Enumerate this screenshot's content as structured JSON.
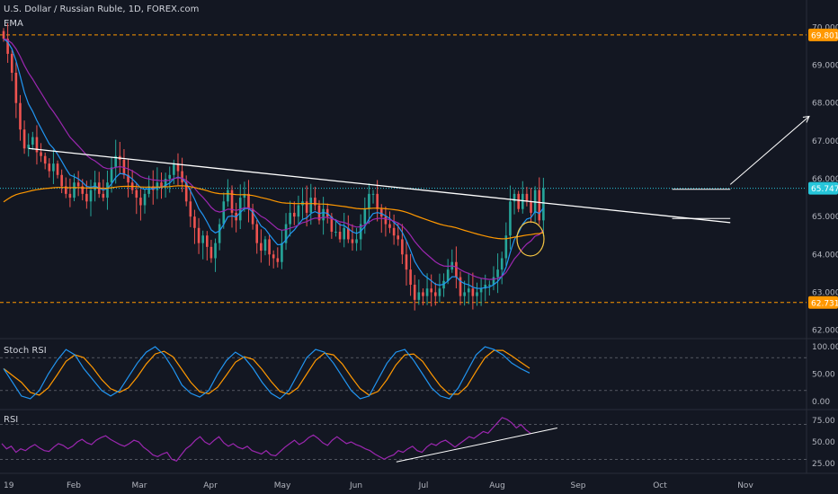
{
  "header": {
    "title": "U.S. Dollar / Russian Ruble, 1D, FOREX.com",
    "indicator": "EMA"
  },
  "panes": {
    "stoch_label": "Stoch RSI",
    "rsi_label": "RSI"
  },
  "colors": {
    "background": "#131722",
    "up": "#26a69a",
    "down": "#ef5350",
    "ema_fast": "#2196f3",
    "ema_mid": "#9c27b0",
    "ema_slow": "#ff9800",
    "stoch_k": "#2196f3",
    "stoch_d": "#ff9800",
    "rsi": "#9c27b0",
    "trendline": "#ffffff",
    "level": "#ff9800",
    "current": "#26c6da",
    "circle": "#f5c542"
  },
  "chart_data": {
    "type": "candlestick",
    "instrument": "U.S. Dollar / Russian Ruble, 1D, FOREX.com",
    "x_ticks": [
      "19",
      "Feb",
      "Mar",
      "Apr",
      "May",
      "Jun",
      "Jul",
      "Aug",
      "Sep",
      "Oct",
      "Nov"
    ],
    "price_ticks": [
      "70.000",
      "69.000",
      "68.000",
      "67.000",
      "66.000",
      "65.000",
      "64.000",
      "63.000",
      "62.000"
    ],
    "ylim": [
      61.8,
      70.2
    ],
    "price_labels": {
      "high_level": "69.801",
      "current": "65.747",
      "low_level": "62.731"
    },
    "levels": {
      "high": 69.801,
      "current": 65.747,
      "low": 62.731
    },
    "closes": [
      69.7,
      69.3,
      68.8,
      68.0,
      67.3,
      66.8,
      66.9,
      67.1,
      66.7,
      66.6,
      66.4,
      66.2,
      66.4,
      66.1,
      65.8,
      65.6,
      65.5,
      65.9,
      65.8,
      65.6,
      65.4,
      65.7,
      65.9,
      65.6,
      65.5,
      65.9,
      66.3,
      66.6,
      66.5,
      66.1,
      65.9,
      65.7,
      65.5,
      65.3,
      65.6,
      65.8,
      65.7,
      65.9,
      65.8,
      66.0,
      66.1,
      66.4,
      66.2,
      65.9,
      65.4,
      65.0,
      64.7,
      64.3,
      64.5,
      64.2,
      63.9,
      64.3,
      64.8,
      65.4,
      65.7,
      65.1,
      64.9,
      65.5,
      65.6,
      65.2,
      64.8,
      64.3,
      64.1,
      64.4,
      64.0,
      63.9,
      63.8,
      64.3,
      64.8,
      65.1,
      65.0,
      65.3,
      65.4,
      65.1,
      65.5,
      65.3,
      64.9,
      65.2,
      65.0,
      64.6,
      64.6,
      64.4,
      64.7,
      64.4,
      64.3,
      64.4,
      64.8,
      65.2,
      65.6,
      65.6,
      65.2,
      65.0,
      64.8,
      64.7,
      64.5,
      64.4,
      64.0,
      63.6,
      63.2,
      62.8,
      63.0,
      62.9,
      63.1,
      63.0,
      62.9,
      63.1,
      63.3,
      63.6,
      63.8,
      63.4,
      62.9,
      63.0,
      63.1,
      62.9,
      63.0,
      63.1,
      63.2,
      63.2,
      63.4,
      63.6,
      63.9,
      64.5,
      65.4,
      65.6,
      65.2,
      65.6,
      65.4,
      65.1,
      65.7,
      64.9,
      65.747
    ],
    "trendlines": [
      {
        "x": [
          6,
          175
        ],
        "y": [
          66.8,
          64.84
        ]
      },
      {
        "x": [
          161,
          175
        ],
        "y": [
          65.72,
          65.72
        ]
      },
      {
        "x": [
          161,
          175
        ],
        "y": [
          64.95,
          64.95
        ]
      },
      {
        "x": [
          175,
          194
        ],
        "y": [
          65.85,
          67.65
        ]
      }
    ],
    "stoch_rsi": {
      "ticks": [
        "100.00",
        "50.00",
        "0.00"
      ],
      "bands": [
        80,
        20
      ],
      "k": [
        60,
        35,
        10,
        5,
        20,
        50,
        75,
        95,
        85,
        60,
        40,
        20,
        10,
        20,
        45,
        70,
        90,
        100,
        85,
        60,
        30,
        15,
        8,
        20,
        50,
        75,
        90,
        80,
        60,
        35,
        15,
        5,
        20,
        50,
        80,
        95,
        90,
        70,
        45,
        20,
        5,
        10,
        40,
        70,
        90,
        95,
        75,
        50,
        25,
        10,
        5,
        25,
        55,
        85,
        100,
        95,
        85,
        70,
        60,
        52
      ]
    },
    "rsi": {
      "ticks": [
        "75.00",
        "50.00",
        "25.00"
      ],
      "bands": [
        70,
        30
      ],
      "values": [
        48,
        42,
        45,
        38,
        42,
        40,
        44,
        47,
        43,
        40,
        39,
        44,
        48,
        46,
        42,
        45,
        50,
        53,
        49,
        47,
        52,
        55,
        57,
        53,
        50,
        47,
        45,
        48,
        52,
        50,
        44,
        40,
        35,
        33,
        36,
        38,
        30,
        28,
        35,
        42,
        46,
        52,
        56,
        50,
        47,
        52,
        56,
        49,
        45,
        48,
        44,
        42,
        45,
        40,
        38,
        36,
        40,
        35,
        34,
        39,
        44,
        48,
        52,
        47,
        50,
        55,
        58,
        54,
        49,
        46,
        52,
        56,
        52,
        48,
        50,
        47,
        45,
        42,
        40,
        36,
        33,
        30,
        33,
        35,
        40,
        38,
        42,
        45,
        40,
        38,
        44,
        48,
        46,
        50,
        52,
        48,
        44,
        48,
        52,
        56,
        54,
        58,
        62,
        60,
        66,
        72,
        78,
        76,
        72,
        66,
        70,
        64,
        60
      ],
      "trendlines": [
        {
          "x": [
            0.473,
            0.665
          ],
          "y": [
            27,
            66
          ]
        }
      ]
    }
  }
}
